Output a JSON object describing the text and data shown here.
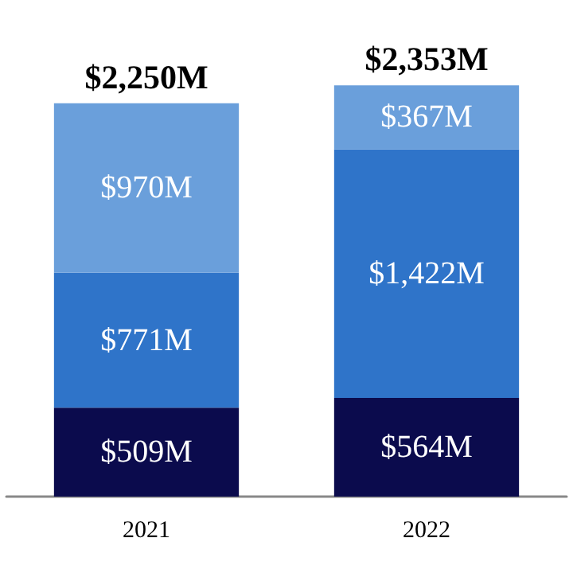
{
  "chart_data": {
    "type": "bar",
    "stacked": true,
    "categories": [
      "2021",
      "2022"
    ],
    "series": [
      {
        "color": "#0b0b4d",
        "values": [
          509,
          564
        ],
        "value_labels": [
          "$509M",
          "$564M"
        ]
      },
      {
        "color": "#2f74c9",
        "values": [
          771,
          1422
        ],
        "value_labels": [
          "$771M",
          "$1,422M"
        ]
      },
      {
        "color": "#6a9fdb",
        "values": [
          970,
          367
        ],
        "value_labels": [
          "$970M",
          "$367M"
        ]
      }
    ],
    "totals": [
      "$2,250M",
      "$2,353M"
    ]
  }
}
